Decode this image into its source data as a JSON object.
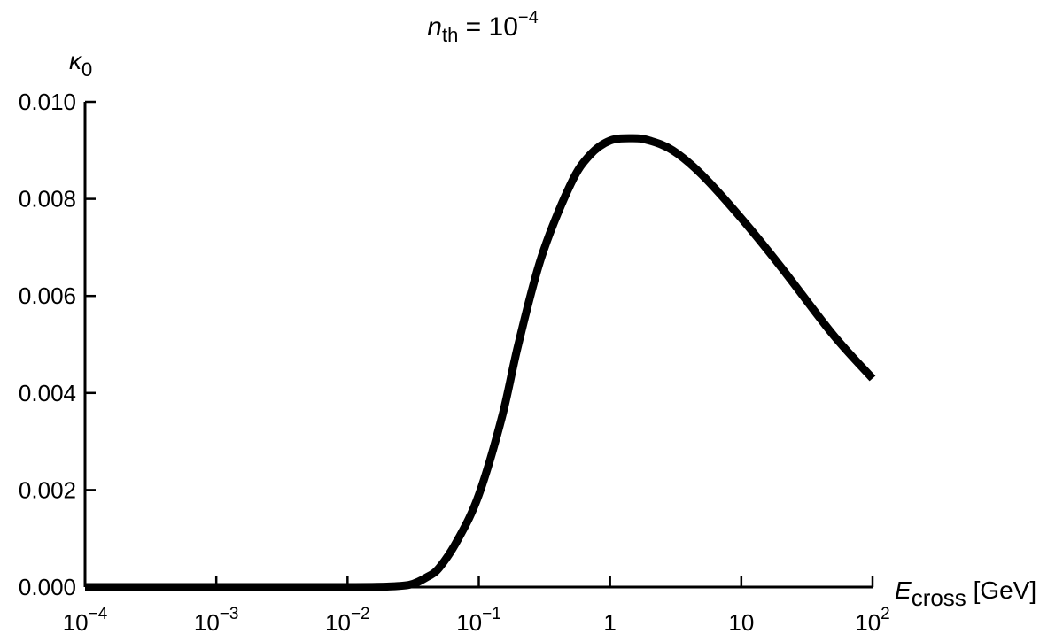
{
  "chart_data": {
    "type": "line",
    "title": {
      "var": "n",
      "sub": "th",
      "mid": " = 10",
      "sup": "−4"
    },
    "xlabel": {
      "var": "E",
      "sub": "cross",
      "unit": " [GeV]"
    },
    "ylabel": {
      "var": "κ",
      "sub": "0"
    },
    "x_scale": "log",
    "xlim": [
      0.0001,
      100
    ],
    "ylim": [
      0,
      0.01
    ],
    "x_ticks": [
      {
        "value": 0.0001,
        "base": "10",
        "exp": "−4"
      },
      {
        "value": 0.001,
        "base": "10",
        "exp": "−3"
      },
      {
        "value": 0.01,
        "base": "10",
        "exp": "−2"
      },
      {
        "value": 0.1,
        "base": "10",
        "exp": "−1"
      },
      {
        "value": 1,
        "base": "1",
        "exp": ""
      },
      {
        "value": 10,
        "base": "10",
        "exp": ""
      },
      {
        "value": 100,
        "base": "10",
        "exp": "2"
      }
    ],
    "y_ticks": [
      {
        "value": 0,
        "label": "0.000"
      },
      {
        "value": 0.002,
        "label": "0.002"
      },
      {
        "value": 0.004,
        "label": "0.004"
      },
      {
        "value": 0.006,
        "label": "0.006"
      },
      {
        "value": 0.008,
        "label": "0.008"
      },
      {
        "value": 0.01,
        "label": "0.010"
      }
    ],
    "grid": false,
    "legend": "none",
    "series": [
      {
        "color": "#000000",
        "points": [
          [
            0.0001,
            0
          ],
          [
            0.001,
            0
          ],
          [
            0.01,
            0
          ],
          [
            0.02,
            1e-05
          ],
          [
            0.03,
            5e-05
          ],
          [
            0.04,
            0.0002
          ],
          [
            0.05,
            0.0004
          ],
          [
            0.07,
            0.001
          ],
          [
            0.1,
            0.0019
          ],
          [
            0.15,
            0.0035
          ],
          [
            0.2,
            0.005
          ],
          [
            0.3,
            0.0068
          ],
          [
            0.5,
            0.0083
          ],
          [
            0.7,
            0.0089
          ],
          [
            1.0,
            0.0092
          ],
          [
            1.5,
            0.00925
          ],
          [
            2.0,
            0.0092
          ],
          [
            3.0,
            0.009
          ],
          [
            5.0,
            0.0085
          ],
          [
            10.0,
            0.0076
          ],
          [
            20.0,
            0.0066
          ],
          [
            50.0,
            0.0052
          ],
          [
            100.0,
            0.0043
          ]
        ]
      }
    ]
  }
}
